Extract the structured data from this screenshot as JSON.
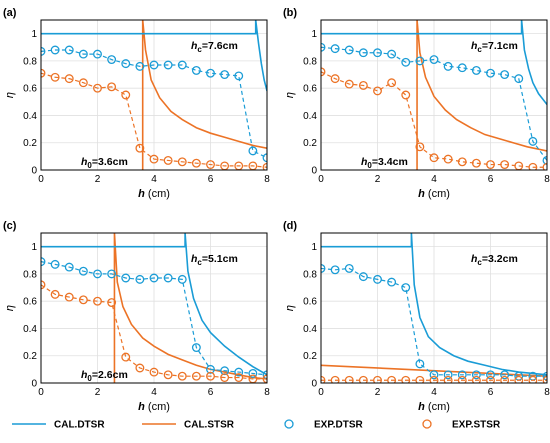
{
  "colors": {
    "dtsr": "#1a9cd6",
    "stsr": "#ec7326",
    "grid": "#e0e0e0",
    "axis": "#000000"
  },
  "legend": {
    "items": [
      {
        "label": "CAL.DTSR",
        "kind": "line",
        "color_key": "dtsr"
      },
      {
        "label": "CAL.STSR",
        "kind": "line",
        "color_key": "stsr"
      },
      {
        "label": "EXP.DTSR",
        "kind": "marker",
        "color_key": "dtsr"
      },
      {
        "label": "EXP.STSR",
        "kind": "marker",
        "color_key": "stsr"
      }
    ]
  },
  "chart_data": [
    {
      "type": "line",
      "panel_label": "(a)",
      "xlabel_main": "h",
      "xlabel_unit": " (cm)",
      "ylabel": "η",
      "xlim": [
        0,
        8
      ],
      "ylim": [
        0,
        1.1
      ],
      "xticks": [
        0,
        2,
        4,
        6,
        8
      ],
      "yticks": [
        0,
        0.2,
        0.4,
        0.6,
        0.8,
        1
      ],
      "grid": true,
      "hc_text": "h_c=7.6cm",
      "h0_text": "h_0=3.6cm",
      "hc": 7.6,
      "h0": 3.6,
      "cal_dtsr": {
        "x": [
          0,
          7.6,
          7.6,
          7.7,
          7.8,
          7.9,
          8.0
        ],
        "y": [
          1,
          1,
          1.1,
          0.93,
          0.78,
          0.66,
          0.58
        ]
      },
      "cal_stsr": {
        "x": [
          3.6,
          3.6,
          3.7,
          3.9,
          4.2,
          4.6,
          5.0,
          5.5,
          6.0,
          6.5,
          7.0,
          7.5,
          8.0
        ],
        "y": [
          0,
          1.1,
          0.88,
          0.66,
          0.53,
          0.43,
          0.37,
          0.31,
          0.27,
          0.24,
          0.21,
          0.18,
          0.16
        ]
      },
      "exp_dtsr": {
        "x": [
          0,
          0.5,
          1,
          1.5,
          2,
          2.5,
          3,
          3.5,
          4,
          4.5,
          5,
          5.5,
          6,
          6.5,
          7,
          7.5,
          8
        ],
        "y": [
          0.87,
          0.88,
          0.88,
          0.85,
          0.85,
          0.81,
          0.78,
          0.76,
          0.77,
          0.77,
          0.77,
          0.73,
          0.71,
          0.7,
          0.69,
          0.14,
          0.09
        ]
      },
      "exp_stsr": {
        "x": [
          0,
          0.5,
          1,
          1.5,
          2,
          2.5,
          3,
          3.5,
          4,
          4.5,
          5,
          5.5,
          6,
          6.5,
          7,
          7.5,
          8
        ],
        "y": [
          0.71,
          0.68,
          0.67,
          0.64,
          0.6,
          0.61,
          0.55,
          0.16,
          0.08,
          0.07,
          0.06,
          0.05,
          0.04,
          0.03,
          0.03,
          0.03,
          0.02
        ]
      },
      "exp_dtsr_dashed_from": 14,
      "exp_stsr_dashed_from": 6
    },
    {
      "type": "line",
      "panel_label": "(b)",
      "xlabel_main": "h",
      "xlabel_unit": " (cm)",
      "ylabel": "η",
      "xlim": [
        0,
        8
      ],
      "ylim": [
        0,
        1.1
      ],
      "xticks": [
        0,
        2,
        4,
        6,
        8
      ],
      "yticks": [
        0,
        0.2,
        0.4,
        0.6,
        0.8,
        1
      ],
      "grid": true,
      "hc_text": "h_c=7.1cm",
      "h0_text": "h_0=3.4cm",
      "hc": 7.1,
      "h0": 3.4,
      "cal_dtsr": {
        "x": [
          0,
          7.1,
          7.1,
          7.2,
          7.35,
          7.5,
          7.7,
          8.0
        ],
        "y": [
          1,
          1,
          1.1,
          0.88,
          0.74,
          0.64,
          0.56,
          0.48
        ]
      },
      "cal_stsr": {
        "x": [
          3.4,
          3.4,
          3.5,
          3.7,
          4.0,
          4.4,
          4.8,
          5.3,
          5.8,
          6.3,
          6.8,
          7.3,
          8.0
        ],
        "y": [
          0,
          1.1,
          0.86,
          0.68,
          0.54,
          0.44,
          0.37,
          0.31,
          0.26,
          0.23,
          0.2,
          0.17,
          0.14
        ]
      },
      "exp_dtsr": {
        "x": [
          0,
          0.5,
          1,
          1.5,
          2,
          2.5,
          3,
          3.5,
          4,
          4.5,
          5,
          5.5,
          6,
          6.5,
          7,
          7.5,
          8
        ],
        "y": [
          0.9,
          0.89,
          0.88,
          0.86,
          0.86,
          0.85,
          0.79,
          0.8,
          0.81,
          0.76,
          0.75,
          0.73,
          0.71,
          0.7,
          0.67,
          0.21,
          0.07
        ]
      },
      "exp_stsr": {
        "x": [
          0,
          0.5,
          1,
          1.5,
          2,
          2.5,
          3,
          3.5,
          4,
          4.5,
          5,
          5.5,
          6,
          6.5,
          7,
          7.5,
          8
        ],
        "y": [
          0.72,
          0.67,
          0.63,
          0.62,
          0.58,
          0.64,
          0.55,
          0.17,
          0.09,
          0.08,
          0.06,
          0.05,
          0.04,
          0.04,
          0.03,
          0.02,
          0.02
        ]
      },
      "exp_dtsr_dashed_from": 14,
      "exp_stsr_dashed_from": 6
    },
    {
      "type": "line",
      "panel_label": "(c)",
      "xlabel_main": "h",
      "xlabel_unit": " (cm)",
      "ylabel": "η",
      "xlim": [
        0,
        8
      ],
      "ylim": [
        0,
        1.1
      ],
      "xticks": [
        0,
        2,
        4,
        6,
        8
      ],
      "yticks": [
        0,
        0.2,
        0.4,
        0.6,
        0.8,
        1
      ],
      "grid": true,
      "hc_text": "h_c=5.1cm",
      "h0_text": "h_0=2.6cm",
      "hc": 5.1,
      "h0": 2.6,
      "cal_dtsr": {
        "x": [
          0,
          5.1,
          5.1,
          5.2,
          5.4,
          5.7,
          6.0,
          6.5,
          7.0,
          7.5,
          8.0
        ],
        "y": [
          1,
          1,
          1.1,
          0.82,
          0.62,
          0.46,
          0.37,
          0.27,
          0.19,
          0.12,
          0.06
        ]
      },
      "cal_stsr": {
        "x": [
          2.6,
          2.6,
          2.7,
          2.9,
          3.2,
          3.6,
          4.0,
          4.5,
          5.0,
          5.5,
          6.0,
          6.5,
          7.0,
          7.5,
          8.0
        ],
        "y": [
          0,
          1.1,
          0.74,
          0.56,
          0.43,
          0.33,
          0.27,
          0.21,
          0.17,
          0.13,
          0.1,
          0.08,
          0.06,
          0.04,
          0.03
        ]
      },
      "exp_dtsr": {
        "x": [
          0,
          0.5,
          1,
          1.5,
          2,
          2.5,
          3,
          3.5,
          4,
          4.5,
          5,
          5.5,
          6,
          6.5,
          7,
          7.5,
          8
        ],
        "y": [
          0.89,
          0.87,
          0.85,
          0.82,
          0.8,
          0.8,
          0.77,
          0.76,
          0.77,
          0.77,
          0.76,
          0.26,
          0.1,
          0.09,
          0.08,
          0.07,
          0.06
        ]
      },
      "exp_stsr": {
        "x": [
          0,
          0.5,
          1,
          1.5,
          2,
          2.5,
          3,
          3.5,
          4,
          4.5,
          5,
          5.5,
          6,
          6.5,
          7,
          7.5,
          8
        ],
        "y": [
          0.72,
          0.65,
          0.63,
          0.61,
          0.6,
          0.59,
          0.19,
          0.11,
          0.08,
          0.06,
          0.05,
          0.05,
          0.05,
          0.04,
          0.04,
          0.03,
          0.03
        ]
      },
      "exp_dtsr_dashed_from": 10,
      "exp_stsr_dashed_from": 5
    },
    {
      "type": "line",
      "panel_label": "(d)",
      "xlabel_main": "h",
      "xlabel_unit": " (cm)",
      "ylabel": "η",
      "xlim": [
        0,
        8
      ],
      "ylim": [
        0,
        1.1
      ],
      "xticks": [
        0,
        2,
        4,
        6,
        8
      ],
      "yticks": [
        0,
        0.2,
        0.4,
        0.6,
        0.8,
        1
      ],
      "grid": true,
      "hc_text": "h_c=3.2cm",
      "h0_text": "",
      "hc": 3.2,
      "h0": null,
      "cal_dtsr": {
        "x": [
          0,
          3.2,
          3.2,
          3.3,
          3.5,
          3.8,
          4.2,
          4.7,
          5.2,
          5.8,
          6.4,
          7.0,
          7.5,
          8.0
        ],
        "y": [
          1,
          1,
          1.1,
          0.72,
          0.48,
          0.34,
          0.26,
          0.2,
          0.16,
          0.13,
          0.1,
          0.08,
          0.07,
          0.06
        ]
      },
      "cal_stsr": {
        "x": [
          0,
          8
        ],
        "y": [
          0.13,
          0.05
        ]
      },
      "exp_dtsr": {
        "x": [
          0,
          0.5,
          1,
          1.5,
          2,
          2.5,
          3,
          3.5,
          4,
          4.5,
          5,
          5.5,
          6,
          6.5,
          7,
          7.5,
          8
        ],
        "y": [
          0.84,
          0.83,
          0.84,
          0.78,
          0.76,
          0.74,
          0.7,
          0.14,
          0.06,
          0.06,
          0.06,
          0.06,
          0.06,
          0.06,
          0.05,
          0.05,
          0.05
        ]
      },
      "exp_stsr": {
        "x": [
          0,
          0.5,
          1,
          1.5,
          2,
          2.5,
          3,
          3.5,
          4,
          4.5,
          5,
          5.5,
          6,
          6.5,
          7,
          7.5,
          8
        ],
        "y": [
          0.02,
          0.02,
          0.02,
          0.02,
          0.02,
          0.02,
          0.02,
          0.02,
          0.02,
          0.02,
          0.02,
          0.02,
          0.02,
          0.02,
          0.02,
          0.02,
          0.02
        ]
      },
      "exp_dtsr_dashed_from": 6,
      "exp_stsr_dashed_from": 99
    }
  ]
}
